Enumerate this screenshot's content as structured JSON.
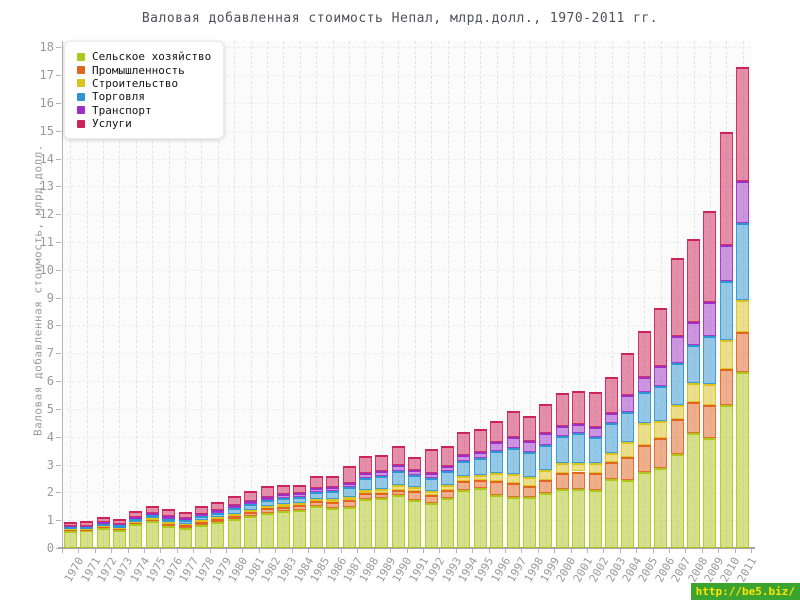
{
  "watermark": {
    "text": "http://be5.biz/",
    "bg_color": "#3ba32f",
    "text_color": "#ffe400"
  },
  "chart_data": {
    "type": "bar",
    "stacked": true,
    "title": "Валовая добавленная стоимость Непал, млрд.долл., 1970-2011 гг.",
    "xlabel": "",
    "ylabel": "Валовая добавленная стоимость, млрд.долл.",
    "ylim": [
      0,
      18
    ],
    "ytick_step": 1,
    "grid": true,
    "legend_position": "top-left",
    "categories": [
      "1970",
      "1971",
      "1972",
      "1973",
      "1974",
      "1975",
      "1976",
      "1977",
      "1978",
      "1979",
      "1980",
      "1981",
      "1982",
      "1983",
      "1984",
      "1985",
      "1986",
      "1987",
      "1988",
      "1989",
      "1990",
      "1991",
      "1992",
      "1993",
      "1994",
      "1995",
      "1996",
      "1997",
      "1998",
      "1999",
      "2000",
      "2001",
      "2002",
      "2003",
      "2004",
      "2005",
      "2006",
      "2007",
      "2008",
      "2009",
      "2010",
      "2011"
    ],
    "series": [
      {
        "key": "agriculture",
        "name": "Сельское хозяйство",
        "color": "#aec819",
        "values": [
          0.62,
          0.63,
          0.72,
          0.66,
          0.86,
          0.96,
          0.78,
          0.72,
          0.83,
          0.92,
          1.03,
          1.14,
          1.27,
          1.32,
          1.38,
          1.5,
          1.45,
          1.48,
          1.77,
          1.78,
          1.89,
          1.73,
          1.6,
          1.8,
          2.1,
          2.15,
          1.9,
          1.85,
          1.82,
          1.97,
          2.11,
          2.11,
          2.08,
          2.47,
          2.45,
          2.74,
          2.87,
          3.37,
          4.15,
          3.95,
          5.14,
          6.34
        ]
      },
      {
        "key": "industry",
        "name": "Промышленность",
        "color": "#e2641e",
        "values": [
          0.03,
          0.03,
          0.04,
          0.04,
          0.05,
          0.06,
          0.09,
          0.09,
          0.1,
          0.11,
          0.13,
          0.14,
          0.15,
          0.17,
          0.16,
          0.18,
          0.21,
          0.24,
          0.19,
          0.21,
          0.21,
          0.33,
          0.3,
          0.28,
          0.3,
          0.28,
          0.5,
          0.48,
          0.4,
          0.48,
          0.6,
          0.64,
          0.6,
          0.63,
          0.83,
          0.97,
          1.1,
          1.26,
          1.11,
          1.2,
          1.3,
          1.41
        ]
      },
      {
        "key": "construction",
        "name": "Строительство",
        "color": "#dcc31c",
        "values": [
          0.03,
          0.03,
          0.03,
          0.03,
          0.04,
          0.05,
          0.05,
          0.05,
          0.06,
          0.07,
          0.08,
          0.09,
          0.08,
          0.08,
          0.08,
          0.08,
          0.09,
          0.12,
          0.12,
          0.12,
          0.15,
          0.12,
          0.15,
          0.17,
          0.18,
          0.19,
          0.3,
          0.33,
          0.32,
          0.36,
          0.33,
          0.32,
          0.36,
          0.33,
          0.54,
          0.77,
          0.6,
          0.51,
          0.66,
          0.74,
          1.04,
          1.17
        ]
      },
      {
        "key": "trade",
        "name": "Торговля",
        "color": "#2d95d2",
        "values": [
          0.07,
          0.07,
          0.08,
          0.08,
          0.1,
          0.11,
          0.14,
          0.13,
          0.15,
          0.17,
          0.19,
          0.21,
          0.21,
          0.22,
          0.23,
          0.25,
          0.31,
          0.34,
          0.42,
          0.48,
          0.52,
          0.44,
          0.48,
          0.5,
          0.55,
          0.6,
          0.77,
          0.93,
          0.9,
          0.9,
          0.99,
          1.06,
          0.94,
          1.08,
          1.08,
          1.14,
          1.26,
          1.5,
          1.38,
          1.74,
          2.12,
          2.78
        ]
      },
      {
        "key": "transport",
        "name": "Транспорт",
        "color": "#9d2fc4",
        "values": [
          0.04,
          0.04,
          0.05,
          0.05,
          0.06,
          0.07,
          0.09,
          0.08,
          0.09,
          0.1,
          0.11,
          0.12,
          0.14,
          0.14,
          0.14,
          0.16,
          0.14,
          0.16,
          0.21,
          0.19,
          0.2,
          0.18,
          0.18,
          0.2,
          0.21,
          0.22,
          0.35,
          0.4,
          0.4,
          0.42,
          0.36,
          0.32,
          0.38,
          0.36,
          0.6,
          0.54,
          0.72,
          0.99,
          0.84,
          1.23,
          1.3,
          1.5
        ]
      },
      {
        "key": "services",
        "name": "Услуги",
        "color": "#cc2458",
        "values": [
          0.16,
          0.17,
          0.2,
          0.19,
          0.22,
          0.25,
          0.25,
          0.23,
          0.27,
          0.3,
          0.33,
          0.36,
          0.38,
          0.32,
          0.29,
          0.41,
          0.4,
          0.61,
          0.6,
          0.56,
          0.69,
          0.46,
          0.84,
          0.73,
          0.84,
          0.83,
          0.75,
          0.94,
          0.91,
          1.05,
          1.17,
          1.2,
          1.26,
          1.29,
          1.5,
          1.64,
          2.09,
          2.79,
          2.98,
          3.24,
          4.05,
          4.1
        ]
      }
    ]
  }
}
